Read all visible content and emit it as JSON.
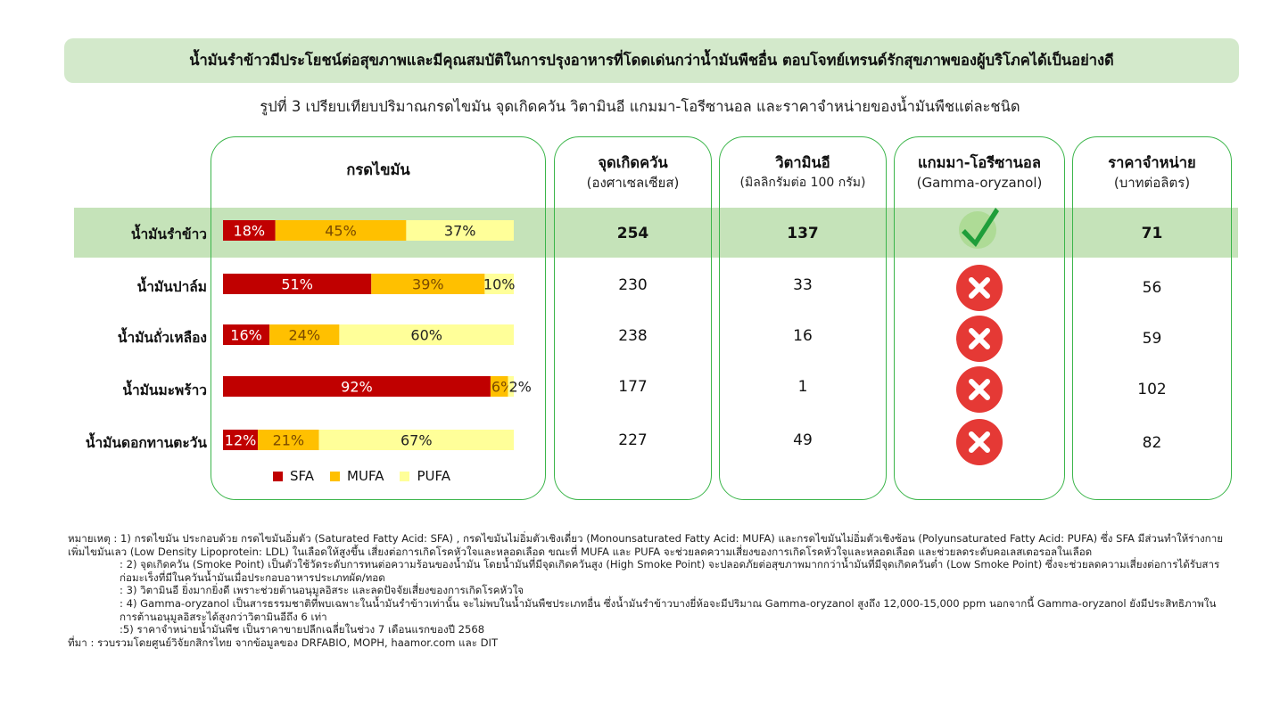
{
  "banner": "น้ำมันรำข้าวมีประโยชน์ต่อสุขภาพและมีคุณสมบัติในการปรุงอาหารที่โดดเด่นกว่าน้ำมันพืชอื่น ตอบโจทย์เทรนด์รักสุขภาพของผู้บริโภคได้เป็นอย่างดี",
  "subtitle": "รูปที่ 3 เปรียบเทียบปริมาณกรดไขมัน จุดเกิดควัน วิตามินอี แกมมา-โอรีซานอล และราคาจำหน่ายของน้ำมันพืชแต่ละชนิด",
  "columns": {
    "fat": "กรดไขมัน",
    "smoke": {
      "title": "จุดเกิดควัน",
      "unit": "(องศาเซลเซียส)"
    },
    "vite": {
      "title": "วิตามินอี",
      "unit": "(มิลลิกรัมต่อ 100 กรัม)"
    },
    "gamma": {
      "title": "แกมมา-โอรีซานอล",
      "unit": "(Gamma-oryzanol)"
    },
    "price": {
      "title": "ราคาจำหน่าย",
      "unit": "(บาทต่อลิตร)"
    }
  },
  "rows": [
    {
      "name": "น้ำมันรำข้าว",
      "smoke": "254",
      "vite": "137",
      "gamma_icon": "check-icon",
      "price": "71"
    },
    {
      "name": "น้ำมันปาล์ม",
      "smoke": "230",
      "vite": "33",
      "gamma_icon": "cross-icon",
      "price": "56"
    },
    {
      "name": "น้ำมันถั่วเหลือง",
      "smoke": "238",
      "vite": "16",
      "gamma_icon": "cross-icon",
      "price": "59"
    },
    {
      "name": "น้ำมันมะพร้าว",
      "smoke": "177",
      "vite": "1",
      "gamma_icon": "cross-icon",
      "price": "102"
    },
    {
      "name": "น้ำมันดอกทานตะวัน",
      "smoke": "227",
      "vite": "49",
      "gamma_icon": "cross-icon",
      "price": "82"
    }
  ],
  "chart_data": {
    "type": "bar",
    "stacked": true,
    "orientation": "horizontal",
    "categories": [
      "น้ำมันรำข้าว",
      "น้ำมันปาล์ม",
      "น้ำมันถั่วเหลือง",
      "น้ำมันมะพร้าว",
      "น้ำมันดอกทานตะวัน"
    ],
    "series": [
      {
        "name": "SFA",
        "values": [
          18,
          51,
          16,
          92,
          12
        ],
        "color": "#c00000"
      },
      {
        "name": "MUFA",
        "values": [
          45,
          39,
          24,
          6,
          21
        ],
        "color": "#ffc000"
      },
      {
        "name": "PUFA",
        "values": [
          37,
          10,
          60,
          2,
          67
        ],
        "color": "#ffff99"
      }
    ],
    "value_suffix": "%",
    "xlim": [
      0,
      100
    ],
    "legend_position": "bottom"
  },
  "colors": {
    "panel_border": "#3bb54a",
    "highlight_row": "#c5e3b9",
    "banner_bg": "#d3e9cb",
    "check": "#1f9e3a",
    "cross": "#e53935"
  },
  "notes": [
    "หมายเหตุ : 1) กรดไขมัน ประกอบด้วย กรดไขมันอิ่มตัว (Saturated Fatty Acid: SFA) , กรดไขมันไม่อิ่มตัวเชิงเดี่ยว (Monounsaturated Fatty Acid: MUFA) และกรดไขมันไม่อิ่มตัวเชิงซ้อน (Polyunsaturated Fatty Acid: PUFA) ซึ่ง SFA มีส่วนทำให้ร่างกายเพิ่มไขมันเลว (Low Density Lipoprotein: LDL) ในเลือดให้สูงขึ้น เสี่ยงต่อการเกิดโรคหัวใจและหลอดเลือด ขณะที่ MUFA และ PUFA จะช่วยลดความเสี่ยงของการเกิดโรคหัวใจและหลอดเลือด และช่วยลดระดับคอเลสเตอรอลในเลือด",
    ": 2) จุดเกิดควัน (Smoke Point) เป็นตัวใช้วัดระดับการทนต่อความร้อนของน้ำมัน โดยน้ำมันที่มีจุดเกิดควันสูง (High Smoke Point) จะปลอดภัยต่อสุขภาพมากกว่าน้ำมันที่มีจุดเกิดควันต่ำ (Low Smoke Point) ซึ่งจะช่วยลดความเสี่ยงต่อการได้รับสารก่อมะเร็งที่มีในควันน้ำมันเมื่อประกอบอาหารประเภทผัด/ทอด",
    ": 3) วิตามินอี ยิ่งมากยิ่งดี เพราะช่วยต้านอนุมูลอิสระ และลดปัจจัยเสี่ยงของการเกิดโรคหัวใจ",
    ": 4) Gamma-oryzanol เป็นสารธรรมชาติที่พบเฉพาะในน้ำมันรำข้าวเท่านั้น จะไม่พบในน้ำมันพืชประเภทอื่น ซึ่งน้ำมันรำข้าวบางยี่ห้อจะมีปริมาณ Gamma-oryzanol สูงถึง 12,000-15,000 ppm นอกจากนี้ Gamma-oryzanol ยังมีประสิทธิภาพในการต้านอนุมูลอิสระได้สูงกว่าวิตามินอีถึง 6 เท่า",
    ":5) ราคาจำหน่ายน้ำมันพืช เป็นราคาขายปลีกเฉลี่ยในช่วง 7 เดือนแรกของปี 2568",
    "ที่มา : รวบรวมโดยศูนย์วิจัยกสิกรไทย จากข้อมูลของ DRFABIO, MOPH, haamor.com และ DIT"
  ]
}
